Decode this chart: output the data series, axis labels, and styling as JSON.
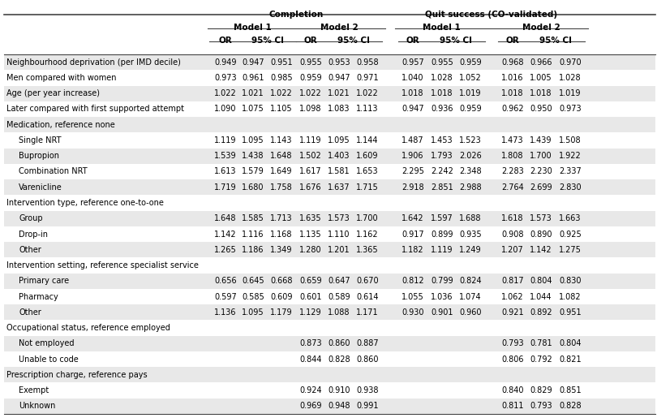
{
  "completion_label": "Completion",
  "quit_label": "Quit success (CO-validated)",
  "model1_label": "Model 1",
  "model2_label": "Model 2",
  "or_label": "OR",
  "ci_label": "95% CI",
  "background_color": "#ffffff",
  "stripe_even": "#e8e8e8",
  "stripe_odd": "#ffffff",
  "line_color": "#444444",
  "rows": [
    {
      "label": "Neighbourhood deprivation (per IMD decile)",
      "indent": 0,
      "is_section": false,
      "c1_or": "0.949",
      "c1_lo": "0.947",
      "c1_hi": "0.951",
      "c2_or": "0.955",
      "c2_lo": "0.953",
      "c2_hi": "0.958",
      "q1_or": "0.957",
      "q1_lo": "0.955",
      "q1_hi": "0.959",
      "q2_or": "0.968",
      "q2_lo": "0.966",
      "q2_hi": "0.970"
    },
    {
      "label": "Men compared with women",
      "indent": 0,
      "is_section": false,
      "c1_or": "0.973",
      "c1_lo": "0.961",
      "c1_hi": "0.985",
      "c2_or": "0.959",
      "c2_lo": "0.947",
      "c2_hi": "0.971",
      "q1_or": "1.040",
      "q1_lo": "1.028",
      "q1_hi": "1.052",
      "q2_or": "1.016",
      "q2_lo": "1.005",
      "q2_hi": "1.028"
    },
    {
      "label": "Age (per year increase)",
      "indent": 0,
      "is_section": false,
      "c1_or": "1.022",
      "c1_lo": "1.021",
      "c1_hi": "1.022",
      "c2_or": "1.022",
      "c2_lo": "1.021",
      "c2_hi": "1.022",
      "q1_or": "1.018",
      "q1_lo": "1.018",
      "q1_hi": "1.019",
      "q2_or": "1.018",
      "q2_lo": "1.018",
      "q2_hi": "1.019"
    },
    {
      "label": "Later compared with first supported attempt",
      "indent": 0,
      "is_section": false,
      "c1_or": "1.090",
      "c1_lo": "1.075",
      "c1_hi": "1.105",
      "c2_or": "1.098",
      "c2_lo": "1.083",
      "c2_hi": "1.113",
      "q1_or": "0.947",
      "q1_lo": "0.936",
      "q1_hi": "0.959",
      "q2_or": "0.962",
      "q2_lo": "0.950",
      "q2_hi": "0.973"
    },
    {
      "label": "Medication, reference none",
      "indent": 0,
      "is_section": true,
      "c1_or": "",
      "c1_lo": "",
      "c1_hi": "",
      "c2_or": "",
      "c2_lo": "",
      "c2_hi": "",
      "q1_or": "",
      "q1_lo": "",
      "q1_hi": "",
      "q2_or": "",
      "q2_lo": "",
      "q2_hi": ""
    },
    {
      "label": "Single NRT",
      "indent": 1,
      "is_section": false,
      "c1_or": "1.119",
      "c1_lo": "1.095",
      "c1_hi": "1.143",
      "c2_or": "1.119",
      "c2_lo": "1.095",
      "c2_hi": "1.144",
      "q1_or": "1.487",
      "q1_lo": "1.453",
      "q1_hi": "1.523",
      "q2_or": "1.473",
      "q2_lo": "1.439",
      "q2_hi": "1.508"
    },
    {
      "label": "Bupropion",
      "indent": 1,
      "is_section": false,
      "c1_or": "1.539",
      "c1_lo": "1.438",
      "c1_hi": "1.648",
      "c2_or": "1.502",
      "c2_lo": "1.403",
      "c2_hi": "1.609",
      "q1_or": "1.906",
      "q1_lo": "1.793",
      "q1_hi": "2.026",
      "q2_or": "1.808",
      "q2_lo": "1.700",
      "q2_hi": "1.922"
    },
    {
      "label": "Combination NRT",
      "indent": 1,
      "is_section": false,
      "c1_or": "1.613",
      "c1_lo": "1.579",
      "c1_hi": "1.649",
      "c2_or": "1.617",
      "c2_lo": "1.581",
      "c2_hi": "1.653",
      "q1_or": "2.295",
      "q1_lo": "2.242",
      "q1_hi": "2.348",
      "q2_or": "2.283",
      "q2_lo": "2.230",
      "q2_hi": "2.337"
    },
    {
      "label": "Varenicline",
      "indent": 1,
      "is_section": false,
      "c1_or": "1.719",
      "c1_lo": "1.680",
      "c1_hi": "1.758",
      "c2_or": "1.676",
      "c2_lo": "1.637",
      "c2_hi": "1.715",
      "q1_or": "2.918",
      "q1_lo": "2.851",
      "q1_hi": "2.988",
      "q2_or": "2.764",
      "q2_lo": "2.699",
      "q2_hi": "2.830"
    },
    {
      "label": "Intervention type, reference one-to-one",
      "indent": 0,
      "is_section": true,
      "c1_or": "",
      "c1_lo": "",
      "c1_hi": "",
      "c2_or": "",
      "c2_lo": "",
      "c2_hi": "",
      "q1_or": "",
      "q1_lo": "",
      "q1_hi": "",
      "q2_or": "",
      "q2_lo": "",
      "q2_hi": ""
    },
    {
      "label": "Group",
      "indent": 1,
      "is_section": false,
      "c1_or": "1.648",
      "c1_lo": "1.585",
      "c1_hi": "1.713",
      "c2_or": "1.635",
      "c2_lo": "1.573",
      "c2_hi": "1.700",
      "q1_or": "1.642",
      "q1_lo": "1.597",
      "q1_hi": "1.688",
      "q2_or": "1.618",
      "q2_lo": "1.573",
      "q2_hi": "1.663"
    },
    {
      "label": "Drop-in",
      "indent": 1,
      "is_section": false,
      "c1_or": "1.142",
      "c1_lo": "1.116",
      "c1_hi": "1.168",
      "c2_or": "1.135",
      "c2_lo": "1.110",
      "c2_hi": "1.162",
      "q1_or": "0.917",
      "q1_lo": "0.899",
      "q1_hi": "0.935",
      "q2_or": "0.908",
      "q2_lo": "0.890",
      "q2_hi": "0.925"
    },
    {
      "label": "Other",
      "indent": 1,
      "is_section": false,
      "c1_or": "1.265",
      "c1_lo": "1.186",
      "c1_hi": "1.349",
      "c2_or": "1.280",
      "c2_lo": "1.201",
      "c2_hi": "1.365",
      "q1_or": "1.182",
      "q1_lo": "1.119",
      "q1_hi": "1.249",
      "q2_or": "1.207",
      "q2_lo": "1.142",
      "q2_hi": "1.275"
    },
    {
      "label": "Intervention setting, reference specialist service",
      "indent": 0,
      "is_section": true,
      "c1_or": "",
      "c1_lo": "",
      "c1_hi": "",
      "c2_or": "",
      "c2_lo": "",
      "c2_hi": "",
      "q1_or": "",
      "q1_lo": "",
      "q1_hi": "",
      "q2_or": "",
      "q2_lo": "",
      "q2_hi": ""
    },
    {
      "label": "Primary care",
      "indent": 1,
      "is_section": false,
      "c1_or": "0.656",
      "c1_lo": "0.645",
      "c1_hi": "0.668",
      "c2_or": "0.659",
      "c2_lo": "0.647",
      "c2_hi": "0.670",
      "q1_or": "0.812",
      "q1_lo": "0.799",
      "q1_hi": "0.824",
      "q2_or": "0.817",
      "q2_lo": "0.804",
      "q2_hi": "0.830"
    },
    {
      "label": "Pharmacy",
      "indent": 1,
      "is_section": false,
      "c1_or": "0.597",
      "c1_lo": "0.585",
      "c1_hi": "0.609",
      "c2_or": "0.601",
      "c2_lo": "0.589",
      "c2_hi": "0.614",
      "q1_or": "1.055",
      "q1_lo": "1.036",
      "q1_hi": "1.074",
      "q2_or": "1.062",
      "q2_lo": "1.044",
      "q2_hi": "1.082"
    },
    {
      "label": "Other",
      "indent": 1,
      "is_section": false,
      "c1_or": "1.136",
      "c1_lo": "1.095",
      "c1_hi": "1.179",
      "c2_or": "1.129",
      "c2_lo": "1.088",
      "c2_hi": "1.171",
      "q1_or": "0.930",
      "q1_lo": "0.901",
      "q1_hi": "0.960",
      "q2_or": "0.921",
      "q2_lo": "0.892",
      "q2_hi": "0.951"
    },
    {
      "label": "Occupational status, reference employed",
      "indent": 0,
      "is_section": true,
      "c1_or": "",
      "c1_lo": "",
      "c1_hi": "",
      "c2_or": "",
      "c2_lo": "",
      "c2_hi": "",
      "q1_or": "",
      "q1_lo": "",
      "q1_hi": "",
      "q2_or": "",
      "q2_lo": "",
      "q2_hi": ""
    },
    {
      "label": "Not employed",
      "indent": 1,
      "is_section": false,
      "c1_or": "",
      "c1_lo": "",
      "c1_hi": "",
      "c2_or": "0.873",
      "c2_lo": "0.860",
      "c2_hi": "0.887",
      "q1_or": "",
      "q1_lo": "",
      "q1_hi": "",
      "q2_or": "0.793",
      "q2_lo": "0.781",
      "q2_hi": "0.804"
    },
    {
      "label": "Unable to code",
      "indent": 1,
      "is_section": false,
      "c1_or": "",
      "c1_lo": "",
      "c1_hi": "",
      "c2_or": "0.844",
      "c2_lo": "0.828",
      "c2_hi": "0.860",
      "q1_or": "",
      "q1_lo": "",
      "q1_hi": "",
      "q2_or": "0.806",
      "q2_lo": "0.792",
      "q2_hi": "0.821"
    },
    {
      "label": "Prescription charge, reference pays",
      "indent": 0,
      "is_section": true,
      "c1_or": "",
      "c1_lo": "",
      "c1_hi": "",
      "c2_or": "",
      "c2_lo": "",
      "c2_hi": "",
      "q1_or": "",
      "q1_lo": "",
      "q1_hi": "",
      "q2_or": "",
      "q2_lo": "",
      "q2_hi": ""
    },
    {
      "label": "Exempt",
      "indent": 1,
      "is_section": false,
      "c1_or": "",
      "c1_lo": "",
      "c1_hi": "",
      "c2_or": "0.924",
      "c2_lo": "0.910",
      "c2_hi": "0.938",
      "q1_or": "",
      "q1_lo": "",
      "q1_hi": "",
      "q2_or": "0.840",
      "q2_lo": "0.829",
      "q2_hi": "0.851"
    },
    {
      "label": "Unknown",
      "indent": 1,
      "is_section": false,
      "c1_or": "",
      "c1_lo": "",
      "c1_hi": "",
      "c2_or": "0.969",
      "c2_lo": "0.948",
      "c2_hi": "0.991",
      "q1_or": "",
      "q1_lo": "",
      "q1_hi": "",
      "q2_or": "0.811",
      "q2_lo": "0.793",
      "q2_hi": "0.828"
    }
  ]
}
